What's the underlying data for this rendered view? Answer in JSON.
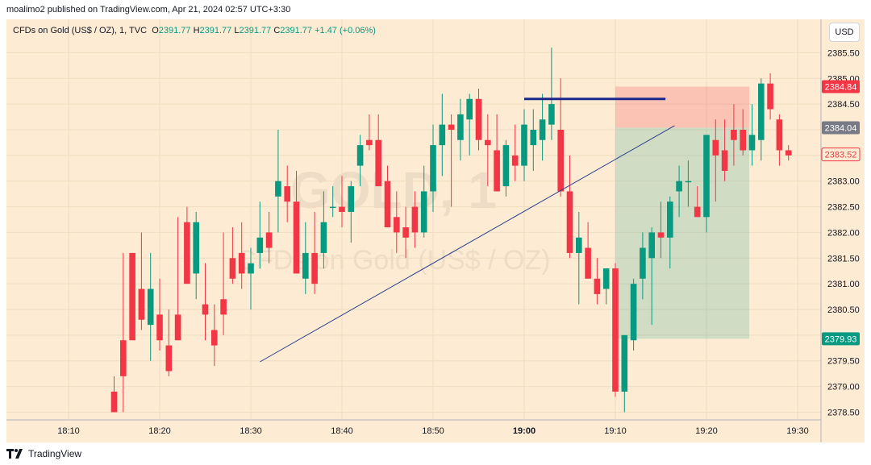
{
  "publish_info": "moalimo2 published on TradingView.com, Apr 21, 2024 02:57 UTC+3:30",
  "legend": {
    "symbol": "CFDs on Gold (US$ / OZ), 1, TVC",
    "open_label": "O",
    "open": "2391.77",
    "high_label": "H",
    "high": "2391.77",
    "low_label": "L",
    "low": "2391.77",
    "close_label": "C",
    "close": "2391.77",
    "change": "+1.47 (+0.06%)"
  },
  "currency_button": "USD",
  "watermark": {
    "symbol": "GOLD, 1",
    "description": "CFDs on Gold (US$ / OZ)"
  },
  "footer_brand": "TradingView",
  "price_labels": [
    {
      "value": "2384.84",
      "price": 2384.84,
      "color": "#f23645"
    },
    {
      "value": "2384.04",
      "price": 2384.04,
      "color": "#787b86"
    },
    {
      "value": "2383.52",
      "price": 2383.52,
      "color": "#f23645",
      "style": "outline"
    },
    {
      "value": "2379.93",
      "price": 2379.93,
      "color": "#089981"
    }
  ],
  "chart_data": {
    "type": "candlestick",
    "title": "",
    "x_ticks": [
      {
        "label": "18:10",
        "minute": 0
      },
      {
        "label": "18:20",
        "minute": 10
      },
      {
        "label": "18:30",
        "minute": 20
      },
      {
        "label": "18:40",
        "minute": 30
      },
      {
        "label": "18:50",
        "minute": 40
      },
      {
        "label": "19:00",
        "minute": 50,
        "bold": true
      },
      {
        "label": "19:10",
        "minute": 60
      },
      {
        "label": "19:20",
        "minute": 70
      },
      {
        "label": "19:30",
        "minute": 80
      }
    ],
    "y_ticks": [
      2378.5,
      2379.0,
      2379.5,
      2380.0,
      2380.5,
      2381.0,
      2381.5,
      2382.0,
      2382.5,
      2383.0,
      2383.5,
      2384.0,
      2384.5,
      2385.0,
      2385.5
    ],
    "ylim": [
      2378.35,
      2386.15
    ],
    "up_color": "#089981",
    "down_color": "#f23645",
    "candles_ohlc_by_minute_from_18_15": [
      [
        2378.9,
        2379.2,
        2378.6,
        2378.5
      ],
      [
        2379.9,
        2381.6,
        2378.5,
        2379.2
      ],
      [
        2381.6,
        2381.6,
        2380.0,
        2379.9
      ],
      [
        2380.9,
        2382.0,
        2380.1,
        2380.3
      ],
      [
        2380.2,
        2381.6,
        2379.5,
        2380.9
      ],
      [
        2380.4,
        2381.1,
        2379.7,
        2379.9
      ],
      [
        2379.8,
        2380.5,
        2379.2,
        2379.3
      ],
      [
        2380.4,
        2382.3,
        2380.0,
        2379.9
      ],
      [
        2382.2,
        2382.5,
        2381.9,
        2381.0
      ],
      [
        2381.2,
        2382.4,
        2380.7,
        2382.2
      ],
      [
        2380.6,
        2381.4,
        2379.9,
        2380.4
      ],
      [
        2380.1,
        2380.6,
        2379.4,
        2379.8
      ],
      [
        2380.7,
        2382.0,
        2380.0,
        2380.4
      ],
      [
        2381.5,
        2382.1,
        2381.0,
        2381.1
      ],
      [
        2381.6,
        2382.2,
        2380.9,
        2381.2
      ],
      [
        2381.2,
        2381.7,
        2380.5,
        2381.4
      ],
      [
        2381.6,
        2382.6,
        2381.3,
        2381.9
      ],
      [
        2382.0,
        2382.4,
        2381.4,
        2381.7
      ],
      [
        2382.7,
        2384.0,
        2382.0,
        2383.0
      ],
      [
        2382.9,
        2383.3,
        2382.2,
        2382.6
      ],
      [
        2382.6,
        2383.2,
        2381.3,
        2381.2
      ],
      [
        2381.1,
        2382.2,
        2380.8,
        2381.6
      ],
      [
        2381.6,
        2382.4,
        2380.8,
        2381.0
      ],
      [
        2381.6,
        2382.8,
        2381.3,
        2382.2
      ],
      [
        2382.5,
        2382.9,
        2382.3,
        2382.5
      ],
      [
        2382.5,
        2383.1,
        2382.1,
        2382.4
      ],
      [
        2382.4,
        2383.0,
        2381.8,
        2382.9
      ],
      [
        2383.3,
        2383.9,
        2382.9,
        2383.7
      ],
      [
        2383.8,
        2384.3,
        2383.6,
        2383.7
      ],
      [
        2383.8,
        2384.3,
        2383.5,
        2382.9
      ],
      [
        2383.0,
        2383.3,
        2382.1,
        2382.1
      ],
      [
        2382.3,
        2382.8,
        2381.6,
        2382.0
      ],
      [
        2382.1,
        2382.5,
        2381.5,
        2381.9
      ],
      [
        2382.5,
        2382.8,
        2381.7,
        2382.0
      ],
      [
        2382.0,
        2383.3,
        2381.9,
        2382.8
      ],
      [
        2382.8,
        2384.1,
        2382.4,
        2383.7
      ],
      [
        2383.7,
        2384.7,
        2383.1,
        2384.1
      ],
      [
        2384.1,
        2384.3,
        2382.5,
        2384.0
      ],
      [
        2383.8,
        2384.6,
        2383.4,
        2384.3
      ],
      [
        2384.2,
        2384.7,
        2383.5,
        2384.6
      ],
      [
        2384.6,
        2384.8,
        2383.6,
        2383.8
      ],
      [
        2383.8,
        2384.3,
        2382.9,
        2383.7
      ],
      [
        2383.6,
        2384.3,
        2382.8,
        2382.8
      ],
      [
        2382.9,
        2383.8,
        2382.7,
        2383.7
      ],
      [
        2383.5,
        2384.1,
        2383.0,
        2383.3
      ],
      [
        2383.3,
        2384.4,
        2383.0,
        2384.1
      ],
      [
        2383.7,
        2384.4,
        2383.2,
        2384.0
      ],
      [
        2383.8,
        2384.7,
        2383.4,
        2384.2
      ],
      [
        2384.1,
        2385.6,
        2383.8,
        2384.5
      ],
      [
        2384.0,
        2385.0,
        2382.7,
        2382.8
      ],
      [
        2382.8,
        2383.5,
        2381.5,
        2381.6
      ],
      [
        2381.6,
        2382.4,
        2380.6,
        2381.9
      ],
      [
        2381.7,
        2382.2,
        2381.2,
        2381.1
      ],
      [
        2381.1,
        2381.5,
        2380.6,
        2380.8
      ],
      [
        2380.9,
        2381.3,
        2380.6,
        2381.3
      ],
      [
        2381.3,
        2381.4,
        2378.8,
        2378.9
      ],
      [
        2378.9,
        2380.0,
        2378.5,
        2380.0
      ],
      [
        2379.9,
        2381.1,
        2379.7,
        2381.0
      ],
      [
        2381.1,
        2382.0,
        2380.7,
        2381.7
      ],
      [
        2381.5,
        2382.1,
        2380.2,
        2382.0
      ],
      [
        2382.0,
        2382.6,
        2381.5,
        2381.9
      ],
      [
        2381.9,
        2382.7,
        2381.3,
        2382.6
      ],
      [
        2382.8,
        2383.3,
        2382.3,
        2383.0
      ],
      [
        2383.0,
        2383.4,
        2382.5,
        2383.0
      ],
      [
        2382.5,
        2382.9,
        2382.3,
        2382.3
      ],
      [
        2382.3,
        2383.6,
        2382.0,
        2383.9
      ],
      [
        2383.8,
        2384.2,
        2382.6,
        2383.5
      ],
      [
        2383.6,
        2384.2,
        2383.0,
        2383.2
      ],
      [
        2384.0,
        2384.5,
        2383.3,
        2383.8
      ],
      [
        2384.0,
        2384.4,
        2383.5,
        2383.6
      ],
      [
        2383.6,
        2384.5,
        2383.3,
        2383.9
      ],
      [
        2383.8,
        2385.0,
        2383.4,
        2384.9
      ],
      [
        2384.9,
        2385.1,
        2384.2,
        2384.4
      ],
      [
        2384.2,
        2384.3,
        2383.3,
        2383.6
      ],
      [
        2383.6,
        2383.7,
        2383.4,
        2383.5
      ]
    ]
  }
}
